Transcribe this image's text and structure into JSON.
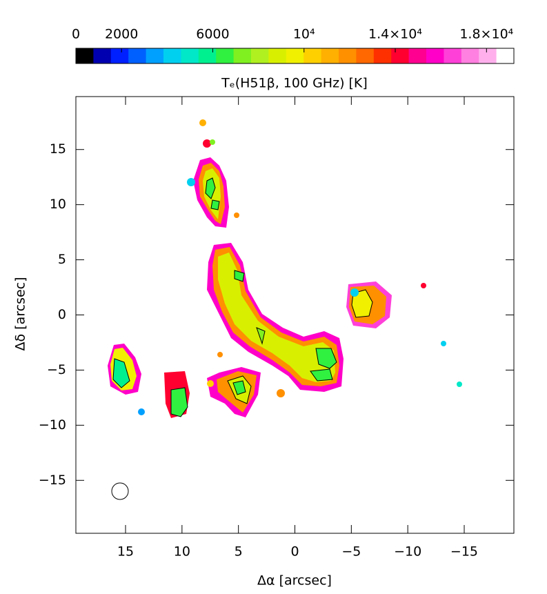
{
  "chart_data": {
    "type": "map",
    "colorbar": {
      "title": "Tₑ(H51β, 100 GHz) [K]",
      "clim": [
        0,
        19200
      ],
      "ticks": [
        0,
        2000,
        6000,
        {
          "value": 10000,
          "label": "10⁴"
        },
        {
          "value": 14000,
          "label": "1.4×10⁴"
        },
        {
          "value": 18000,
          "label": "1.8×10⁴"
        }
      ],
      "colors": [
        "#000000",
        "#0000b0",
        "#0020ff",
        "#0060ff",
        "#00a0ff",
        "#00d0f0",
        "#00e8c8",
        "#00f090",
        "#30f040",
        "#80f020",
        "#b0f020",
        "#d8f000",
        "#f0f000",
        "#ffd000",
        "#ffb000",
        "#ff9000",
        "#ff6800",
        "#ff3000",
        "#ff0030",
        "#ff0090",
        "#ff00c8",
        "#ff40d8",
        "#ff80e0",
        "#ffb0ec",
        "#ffffff"
      ]
    },
    "x_label": "Δα [arcsec]",
    "y_label": "Δδ [arcsec]",
    "xlim": [
      19.4,
      -19.4
    ],
    "ylim": [
      -19.8,
      19.8
    ],
    "xticks": [
      15,
      10,
      5,
      0,
      {
        "value": -5,
        "label": "−5"
      },
      {
        "value": -10,
        "label": "−10"
      },
      {
        "value": -15,
        "label": "−15"
      }
    ],
    "yticks": [
      15,
      10,
      5,
      0,
      {
        "value": -5,
        "label": "−5"
      },
      {
        "value": -10,
        "label": "−10"
      },
      {
        "value": -15,
        "label": "−15"
      }
    ]
  }
}
